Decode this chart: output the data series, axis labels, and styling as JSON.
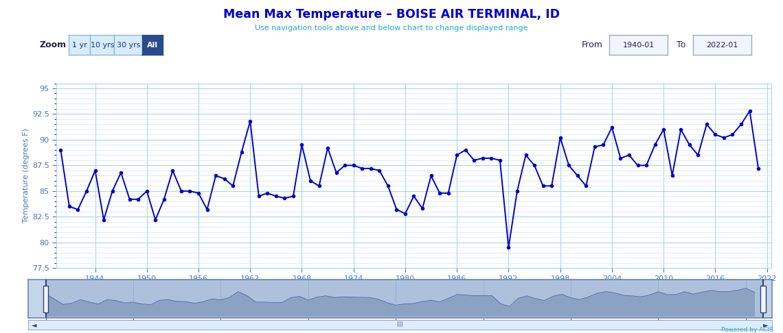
{
  "title": "Mean Max Temperature – BOISE AIR TERMINAL, ID",
  "subtitle": "Use navigation tools above and below chart to change displayed range",
  "ylabel": "Temperature (degrees F)",
  "title_color": "#0000cc",
  "subtitle_color": "#22aacc",
  "line_color": "#0000cc",
  "bg_color": "#ffffff",
  "plot_bg_color": "#ffffff",
  "grid_color": "#aad4f5",
  "minor_grid_color": "#cce8f8",
  "text_color": "#4477bb",
  "ylim": [
    77.5,
    95.5
  ],
  "yticks": [
    77.5,
    80,
    82.5,
    85,
    87.5,
    90,
    92.5,
    95
  ],
  "years": [
    1940,
    1941,
    1942,
    1943,
    1944,
    1945,
    1946,
    1947,
    1948,
    1949,
    1950,
    1951,
    1952,
    1953,
    1954,
    1955,
    1956,
    1957,
    1958,
    1959,
    1960,
    1961,
    1962,
    1963,
    1964,
    1965,
    1966,
    1967,
    1968,
    1969,
    1970,
    1971,
    1972,
    1973,
    1974,
    1975,
    1976,
    1977,
    1978,
    1979,
    1980,
    1981,
    1982,
    1983,
    1984,
    1985,
    1986,
    1987,
    1988,
    1989,
    1990,
    1991,
    1992,
    1993,
    1994,
    1995,
    1996,
    1997,
    1998,
    1999,
    2000,
    2001,
    2002,
    2003,
    2004,
    2005,
    2006,
    2007,
    2008,
    2009,
    2010,
    2011,
    2012,
    2013,
    2014,
    2015,
    2016,
    2017,
    2018,
    2019,
    2020,
    2021
  ],
  "temps": [
    89.0,
    83.5,
    83.2,
    85.0,
    87.0,
    82.2,
    85.0,
    86.8,
    84.2,
    84.2,
    85.0,
    82.2,
    84.2,
    87.0,
    85.0,
    85.0,
    84.8,
    83.2,
    86.5,
    86.2,
    85.5,
    88.8,
    91.8,
    84.5,
    84.8,
    84.5,
    84.3,
    84.5,
    89.5,
    86.0,
    85.5,
    89.2,
    86.8,
    87.5,
    87.5,
    87.2,
    87.2,
    87.0,
    85.5,
    83.2,
    82.8,
    84.5,
    83.3,
    86.5,
    84.8,
    84.8,
    88.5,
    89.0,
    88.0,
    88.2,
    88.2,
    88.0,
    79.5,
    85.0,
    88.5,
    87.5,
    85.5,
    85.5,
    90.2,
    87.5,
    86.5,
    85.5,
    89.3,
    89.5,
    91.2,
    88.2,
    88.5,
    87.5,
    87.5,
    89.5,
    91.0,
    86.5,
    91.0,
    89.5,
    88.5,
    91.5,
    90.5,
    90.2,
    90.5,
    91.5,
    92.8,
    87.2
  ],
  "xticks": [
    1944,
    1950,
    1956,
    1962,
    1968,
    1974,
    1980,
    1986,
    1992,
    1998,
    2004,
    2010,
    2016,
    2022
  ],
  "xlim": [
    1939.5,
    2022.5
  ],
  "zoom_label": "Zoom",
  "zoom_buttons": [
    "1 yr",
    "10 yrs",
    "30 yrs",
    "All"
  ],
  "active_zoom": "All",
  "from_label": "From",
  "from_value": "1940-01",
  "to_label": "To",
  "to_value": "2022-01",
  "footer_text": "Powered by ACIS",
  "marker_size": 3.0,
  "linewidth": 1.4,
  "nav_xticks": [
    1940,
    1950,
    1960,
    1970,
    1980,
    1990,
    2000,
    2010,
    2020
  ],
  "nav_bg": "#c5d5e8",
  "nav_fill": "#8899bb",
  "nav_line": "#5566aa",
  "nav_border": "#6688bb"
}
